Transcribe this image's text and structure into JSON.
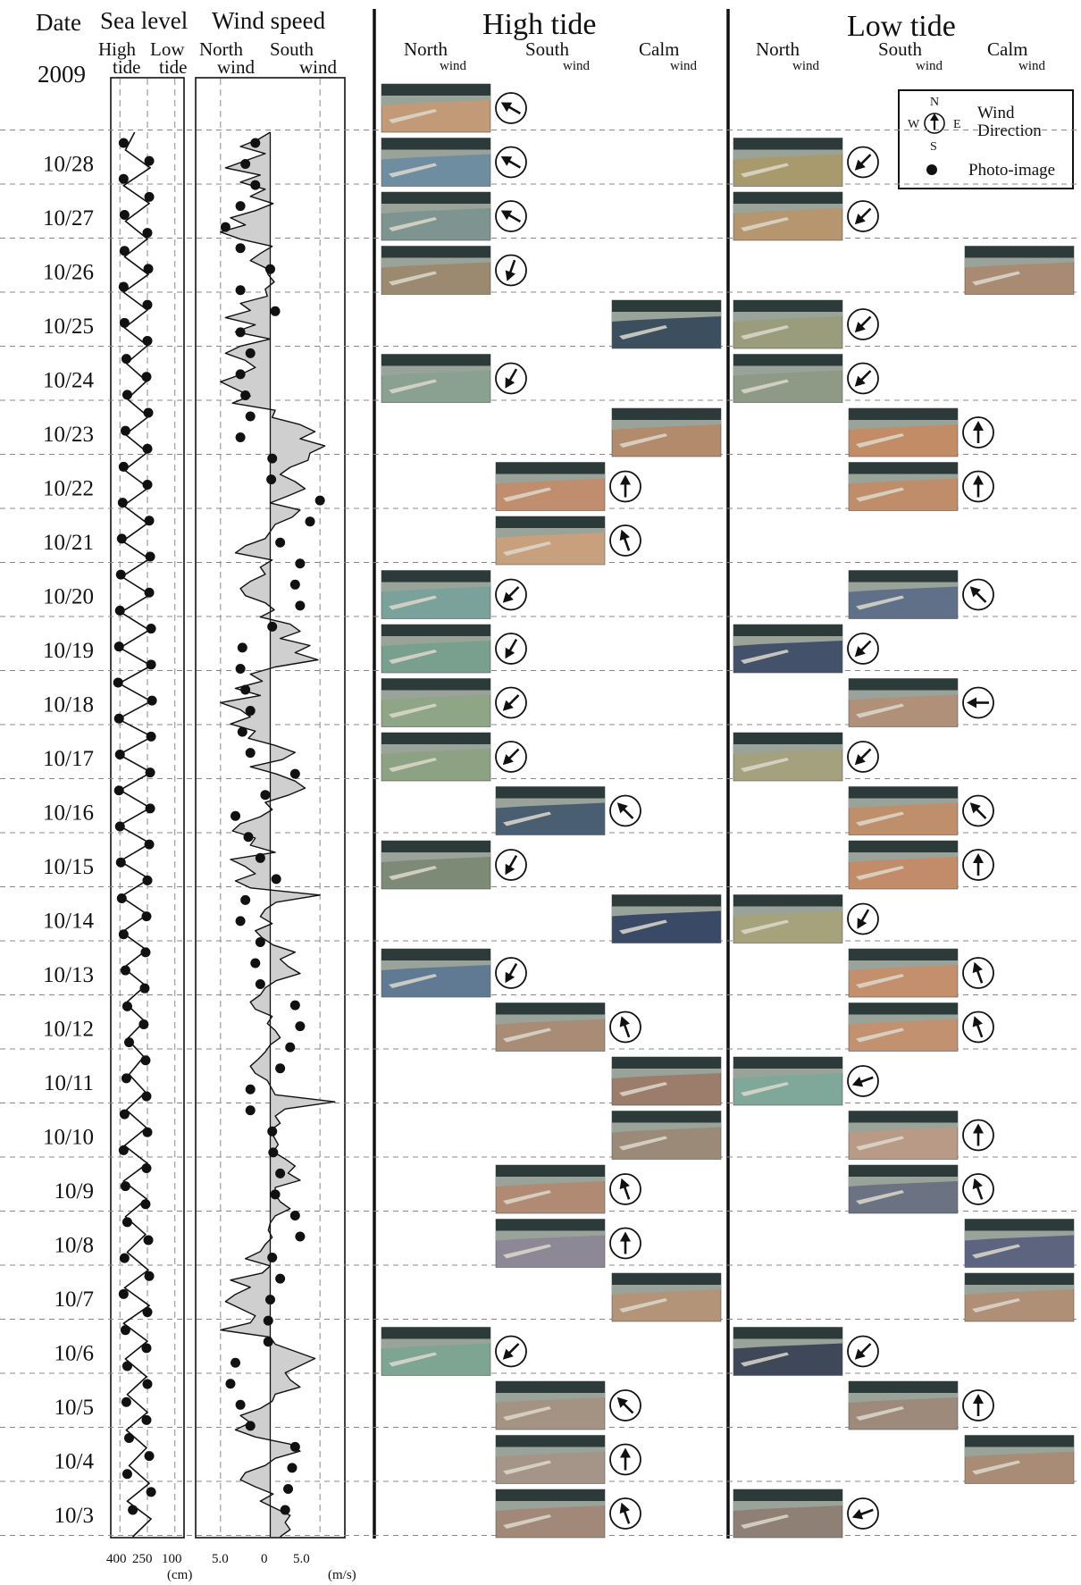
{
  "header": {
    "date_label": "Date",
    "year": "2009",
    "sea_level_title": "Sea level",
    "high_tide_label_1": "High",
    "high_tide_label_2": "tide",
    "low_tide_label_1": "Low",
    "low_tide_label_2": "tide",
    "wind_speed_title": "Wind speed",
    "north_wind_1": "North",
    "north_wind_2": "wind",
    "south_wind_1": "South",
    "south_wind_2": "wind",
    "high_tide_section": "High tide",
    "low_tide_section": "Low tide",
    "north_col": "North",
    "south_col": "South",
    "calm_col": "Calm",
    "wind_word": "wind"
  },
  "legend": {
    "compass_n": "N",
    "compass_s": "S",
    "compass_w": "W",
    "compass_e": "E",
    "wind_direction_1": "Wind",
    "wind_direction_2": "Direction",
    "photo_label": "Photo-image"
  },
  "axes": {
    "sea_ticks": [
      "400",
      "250",
      "100"
    ],
    "sea_unit": "(cm)",
    "wind_ticks": [
      "5.0",
      "0",
      "5.0"
    ],
    "wind_unit": "(m/s)"
  },
  "colors": {
    "line": "#111111",
    "fill": "#cfcfcf",
    "grid": "#888888",
    "photo_sky": "#2d3a3a",
    "photo_shore": "#9aa39a"
  },
  "rows": [
    {
      "date": "",
      "high": {
        "col": "north",
        "tone": "#c29a77",
        "arrow": 300
      },
      "low": null
    },
    {
      "date": "10/28",
      "high": {
        "col": "north",
        "tone": "#6f8da0",
        "arrow": 300
      },
      "low": {
        "col": "north",
        "tone": "#a99a6e",
        "arrow": 225
      }
    },
    {
      "date": "10/27",
      "high": {
        "col": "north",
        "tone": "#7d9490",
        "arrow": 300
      },
      "low": {
        "col": "north",
        "tone": "#b5966e",
        "arrow": 225
      }
    },
    {
      "date": "10/26",
      "high": {
        "col": "north",
        "tone": "#9c8a70",
        "arrow": 200
      },
      "low": {
        "col": "calm",
        "tone": "#a98a72",
        "arrow": null
      }
    },
    {
      "date": "10/25",
      "high": {
        "col": "calm",
        "tone": "#3b4f5e",
        "arrow": null
      },
      "low": {
        "col": "north",
        "tone": "#9a9d7c",
        "arrow": 225
      }
    },
    {
      "date": "10/24",
      "high": {
        "col": "north",
        "tone": "#8aa090",
        "arrow": 210
      },
      "low": {
        "col": "north",
        "tone": "#8f9a86",
        "arrow": 225
      }
    },
    {
      "date": "10/23",
      "high": {
        "col": "calm",
        "tone": "#b28a6c",
        "arrow": null
      },
      "low": {
        "col": "south",
        "tone": "#c28c66",
        "arrow": 0
      }
    },
    {
      "date": "10/22",
      "high": {
        "col": "south",
        "tone": "#c08e6e",
        "arrow": 0
      },
      "low": {
        "col": "south",
        "tone": "#c08d6a",
        "arrow": 0
      }
    },
    {
      "date": "10/21",
      "high": {
        "col": "south",
        "tone": "#c9a07e",
        "arrow": 340
      },
      "low": null
    },
    {
      "date": "10/20",
      "high": {
        "col": "north",
        "tone": "#7aa29a",
        "arrow": 225
      },
      "low": {
        "col": "south",
        "tone": "#5f7088",
        "arrow": 315
      }
    },
    {
      "date": "10/19",
      "high": {
        "col": "north",
        "tone": "#79a08e",
        "arrow": 210
      },
      "low": {
        "col": "north",
        "tone": "#44516a",
        "arrow": 225
      }
    },
    {
      "date": "10/18",
      "high": {
        "col": "north",
        "tone": "#8ea586",
        "arrow": 225
      },
      "low": {
        "col": "south",
        "tone": "#b09078",
        "arrow": 270
      }
    },
    {
      "date": "10/17",
      "high": {
        "col": "north",
        "tone": "#8da282",
        "arrow": 225
      },
      "low": {
        "col": "north",
        "tone": "#a4a27e",
        "arrow": 225
      }
    },
    {
      "date": "10/16",
      "high": {
        "col": "south",
        "tone": "#4a5e72",
        "arrow": 315
      },
      "low": {
        "col": "south",
        "tone": "#bf8f6c",
        "arrow": 315
      }
    },
    {
      "date": "10/15",
      "high": {
        "col": "north",
        "tone": "#7c8a76",
        "arrow": 210
      },
      "low": {
        "col": "south",
        "tone": "#c28b69",
        "arrow": 0
      }
    },
    {
      "date": "10/14",
      "high": {
        "col": "calm",
        "tone": "#3a4a66",
        "arrow": null
      },
      "low": {
        "col": "north",
        "tone": "#a6a27c",
        "arrow": 210
      }
    },
    {
      "date": "10/13",
      "high": {
        "col": "north",
        "tone": "#5f7a92",
        "arrow": 210
      },
      "low": {
        "col": "south",
        "tone": "#c48f6d",
        "arrow": 340
      }
    },
    {
      "date": "10/12",
      "high": {
        "col": "south",
        "tone": "#a98c76",
        "arrow": 340
      },
      "low": {
        "col": "south",
        "tone": "#c29270",
        "arrow": 340
      }
    },
    {
      "date": "10/11",
      "high": {
        "col": "calm",
        "tone": "#9c7c6a",
        "arrow": null
      },
      "low": {
        "col": "north",
        "tone": "#7fa79a",
        "arrow": 250
      }
    },
    {
      "date": "10/10",
      "high": {
        "col": "calm",
        "tone": "#9c8a78",
        "arrow": null
      },
      "low": {
        "col": "south",
        "tone": "#b89a86",
        "arrow": 0
      }
    },
    {
      "date": "10/9",
      "high": {
        "col": "south",
        "tone": "#b08a72",
        "arrow": 340
      },
      "low": {
        "col": "south",
        "tone": "#6b7282",
        "arrow": 340
      }
    },
    {
      "date": "10/8",
      "high": {
        "col": "south",
        "tone": "#8c8896",
        "arrow": 0
      },
      "low": {
        "col": "calm",
        "tone": "#5c6480",
        "arrow": null
      }
    },
    {
      "date": "10/7",
      "high": {
        "col": "calm",
        "tone": "#b39478",
        "arrow": null
      },
      "low": {
        "col": "calm",
        "tone": "#b08f77",
        "arrow": null
      }
    },
    {
      "date": "10/6",
      "high": {
        "col": "north",
        "tone": "#7ea592",
        "arrow": 225
      },
      "low": {
        "col": "north",
        "tone": "#3f4858",
        "arrow": 225
      }
    },
    {
      "date": "10/5",
      "high": {
        "col": "south",
        "tone": "#a49282",
        "arrow": 315
      },
      "low": {
        "col": "south",
        "tone": "#9d8a7a",
        "arrow": 0
      }
    },
    {
      "date": "10/4",
      "high": {
        "col": "south",
        "tone": "#a59488",
        "arrow": 0
      },
      "low": {
        "col": "calm",
        "tone": "#a98c76",
        "arrow": null
      }
    },
    {
      "date": "10/3",
      "high": {
        "col": "south",
        "tone": "#a28878",
        "arrow": 340
      },
      "low": {
        "col": "north",
        "tone": "#8e8074",
        "arrow": 250
      }
    }
  ],
  "chart_data": [
    {
      "type": "line",
      "axis_ticks": [
        "400",
        "250",
        "100"
      ],
      "unit": "(cm)",
      "xlim": [
        450,
        50
      ],
      "x_reversed": true,
      "sea_level_cm": [
        320,
        370,
        235,
        380,
        240,
        370,
        250,
        375,
        245,
        380,
        250,
        375,
        250,
        365,
        255,
        360,
        245,
        370,
        250,
        375,
        245,
        380,
        250,
        385,
        240,
        390,
        235,
        395,
        240,
        400,
        230,
        405,
        230,
        410,
        225,
        405,
        230,
        400,
        235,
        405,
        235,
        400,
        240,
        395,
        250,
        390,
        255,
        380,
        260,
        370,
        265,
        360,
        270,
        350,
        260,
        365,
        255,
        375,
        250,
        380,
        255,
        370,
        260,
        360,
        245,
        375,
        240,
        380,
        250,
        370,
        255,
        360,
        250,
        365,
        255,
        350,
        240,
        360,
        230,
        330
      ],
      "photo_points_cm": [
        380,
        240,
        380,
        240,
        375,
        250,
        375,
        245,
        380,
        250,
        375,
        250,
        365,
        255,
        360,
        245,
        370,
        250,
        380,
        250,
        385,
        240,
        390,
        235,
        395,
        240,
        400,
        230,
        405,
        230,
        410,
        225,
        405,
        230,
        400,
        235,
        405,
        235,
        400,
        240,
        395,
        250,
        390,
        255,
        380,
        260,
        370,
        265,
        360,
        270,
        350,
        260,
        365,
        255,
        375,
        250,
        380,
        255,
        370,
        260,
        360,
        245,
        375,
        240,
        380,
        250,
        370,
        255,
        360,
        250,
        365,
        255,
        350,
        240,
        360,
        230,
        330
      ]
    },
    {
      "type": "area",
      "axis_ticks": [
        "5.0",
        "0",
        "5.0"
      ],
      "unit": "(m/s)",
      "xlim": [
        -7.5,
        7.5
      ],
      "sign_convention": "negative = North wind, positive = South wind",
      "wind_speed_ms": [
        0,
        -1.2,
        -3,
        -0.5,
        -2.5,
        -4.5,
        -1,
        -3,
        -0.5,
        -2,
        0.3,
        -1.5,
        -4,
        -2.5,
        -5,
        -3,
        0.2,
        -1,
        -2,
        -0.5,
        -0.2,
        0.4,
        -0.5,
        -0.3,
        -3,
        -2,
        -4.5,
        -1.5,
        -3.5,
        0,
        -3,
        -4.5,
        -2.5,
        -1.5,
        -3,
        -5,
        -3.5,
        -2,
        -3.8,
        0.5,
        0.2,
        3,
        4.5,
        3,
        5.5,
        4,
        3.8,
        2,
        1,
        2.5,
        3.5,
        1.8,
        0,
        3,
        2.2,
        0.5,
        0,
        -0.5,
        -2.5,
        -3.5,
        0.2,
        -1,
        -0.5,
        -2,
        -3,
        -2.5,
        -0.5,
        0.4,
        -1,
        2,
        3,
        1,
        4,
        2.5,
        4.8,
        0.5,
        -2,
        -0.8,
        -3.5,
        -1,
        -5,
        -3,
        -2,
        -4,
        -1.5,
        -2.2,
        0.5,
        2.5,
        1.2,
        -2,
        0.6,
        2.5,
        3.5,
        1.8,
        -0.5,
        0.2,
        -1,
        -3,
        -3.8,
        -1.5,
        -2,
        0.5,
        -4,
        -2.5,
        -1.5,
        -3.5,
        -2,
        5,
        0.6,
        -0.5,
        -1,
        0.2,
        -1.5,
        -0.8,
        0.3,
        2.5,
        1,
        1.8,
        3,
        0.6,
        -0.5,
        -1,
        -2,
        -1.5,
        0.2,
        -0.3,
        0.5,
        1,
        0,
        -0.5,
        -1.2,
        -2,
        -1.5,
        -0.3,
        0.1,
        0.5,
        6.5,
        1.5,
        0.5,
        1,
        0,
        0.4,
        0.8,
        0.3,
        1.5,
        2.5,
        1.8,
        3,
        0.5,
        0.5,
        1,
        2,
        0.5,
        0,
        -0.2,
        0.2,
        -0.5,
        -1,
        -2.5,
        0,
        -0.8,
        -4,
        -2,
        -3.5,
        -4.5,
        -3,
        -1.5,
        -2,
        -5,
        0,
        0.5,
        2.5,
        4.5,
        3,
        1.5,
        2,
        3,
        0.5,
        0.2,
        -1,
        -3,
        -2,
        -3.5,
        -1.5,
        2,
        3,
        0.5,
        -0.5,
        -2.5,
        -3,
        -1.5,
        0.3,
        -1,
        0.5,
        2,
        1.5,
        2,
        1
      ],
      "photo_points_ms": [
        -1.5,
        -2.5,
        -1.5,
        -3,
        -4.5,
        -3,
        0,
        -3,
        0.5,
        -3,
        -2,
        -3,
        -2.5,
        -2,
        -3,
        0.2,
        0.1,
        5,
        4,
        1,
        3,
        2.5,
        3,
        0.2,
        -2.8,
        -3,
        -2.5,
        -2,
        -2.8,
        -2,
        2.5,
        -0.5,
        -3.5,
        -2.2,
        -1,
        0.6,
        -2.5,
        -3,
        -1,
        -1.5,
        -1,
        2.5,
        3,
        2,
        1,
        -2,
        -2,
        0.2,
        0.3,
        1,
        0.5,
        2.5,
        3,
        0.2,
        1,
        0,
        -0.2,
        -0.2,
        -3.5,
        -4,
        -3,
        -2,
        2.5,
        2.2,
        1.8,
        1.5
      ]
    }
  ]
}
